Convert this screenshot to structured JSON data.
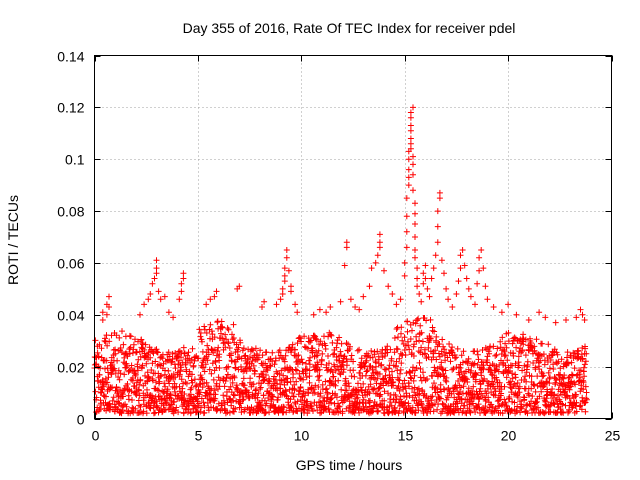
{
  "chart_data": {
    "type": "scatter",
    "title": "Day 355 of 2016, Rate Of TEC Index for receiver pdel",
    "xlabel": "GPS time / hours",
    "ylabel": "ROTI / TECUs",
    "xlim": [
      0,
      25
    ],
    "ylim": [
      0,
      0.14
    ],
    "xticks": [
      0,
      5,
      10,
      15,
      20,
      25
    ],
    "xtick_labels": [
      "0",
      "5",
      "10",
      "15",
      "20",
      "25"
    ],
    "yticks": [
      0,
      0.02,
      0.04,
      0.06,
      0.08,
      0.1,
      0.12,
      0.14
    ],
    "ytick_labels": [
      "0",
      "0.02",
      "0.04",
      "0.06",
      "0.08",
      "0.1",
      "0.12",
      "0.14"
    ],
    "grid": true,
    "marker": "+",
    "color": "#ff0000",
    "series": [
      {
        "name": "ROTI",
        "x_range": [
          0,
          23.8
        ],
        "typical_range": [
          0.005,
          0.03
        ],
        "points": [
          [
            0.4,
            0.038
          ],
          [
            0.4,
            0.041
          ],
          [
            0.6,
            0.04
          ],
          [
            0.6,
            0.044
          ],
          [
            0.7,
            0.043
          ],
          [
            0.7,
            0.047
          ],
          [
            2.2,
            0.04
          ],
          [
            2.4,
            0.044
          ],
          [
            2.6,
            0.046
          ],
          [
            2.7,
            0.048
          ],
          [
            2.8,
            0.052
          ],
          [
            2.9,
            0.054
          ],
          [
            3.0,
            0.056
          ],
          [
            3.0,
            0.058
          ],
          [
            3.0,
            0.061
          ],
          [
            3.1,
            0.049
          ],
          [
            3.2,
            0.046
          ],
          [
            3.4,
            0.047
          ],
          [
            3.6,
            0.041
          ],
          [
            3.8,
            0.039
          ],
          [
            4.1,
            0.046
          ],
          [
            4.2,
            0.049
          ],
          [
            4.2,
            0.052
          ],
          [
            4.3,
            0.054
          ],
          [
            4.3,
            0.056
          ],
          [
            5.4,
            0.044
          ],
          [
            5.6,
            0.046
          ],
          [
            5.8,
            0.047
          ],
          [
            5.9,
            0.049
          ],
          [
            6.9,
            0.05
          ],
          [
            7.0,
            0.051
          ],
          [
            8.1,
            0.043
          ],
          [
            8.2,
            0.045
          ],
          [
            8.8,
            0.044
          ],
          [
            9.0,
            0.046
          ],
          [
            9.1,
            0.048
          ],
          [
            9.1,
            0.05
          ],
          [
            9.2,
            0.053
          ],
          [
            9.2,
            0.055
          ],
          [
            9.2,
            0.058
          ],
          [
            9.3,
            0.062
          ],
          [
            9.3,
            0.065
          ],
          [
            9.4,
            0.057
          ],
          [
            9.5,
            0.051
          ],
          [
            9.5,
            0.049
          ],
          [
            9.7,
            0.044
          ],
          [
            9.8,
            0.041
          ],
          [
            10.6,
            0.04
          ],
          [
            10.9,
            0.042
          ],
          [
            11.2,
            0.041
          ],
          [
            11.4,
            0.043
          ],
          [
            11.9,
            0.045
          ],
          [
            12.1,
            0.059
          ],
          [
            12.2,
            0.066
          ],
          [
            12.2,
            0.068
          ],
          [
            12.4,
            0.046
          ],
          [
            12.6,
            0.043
          ],
          [
            12.8,
            0.042
          ],
          [
            13.0,
            0.047
          ],
          [
            13.3,
            0.051
          ],
          [
            13.4,
            0.058
          ],
          [
            13.6,
            0.06
          ],
          [
            13.7,
            0.063
          ],
          [
            13.8,
            0.066
          ],
          [
            13.8,
            0.068
          ],
          [
            13.8,
            0.071
          ],
          [
            14.0,
            0.057
          ],
          [
            14.2,
            0.051
          ],
          [
            14.4,
            0.048
          ],
          [
            14.6,
            0.044
          ],
          [
            14.8,
            0.046
          ],
          [
            15.0,
            0.055
          ],
          [
            15.0,
            0.06
          ],
          [
            15.1,
            0.066
          ],
          [
            15.1,
            0.072
          ],
          [
            15.1,
            0.078
          ],
          [
            15.1,
            0.085
          ],
          [
            15.2,
            0.09
          ],
          [
            15.2,
            0.093
          ],
          [
            15.2,
            0.096
          ],
          [
            15.2,
            0.1
          ],
          [
            15.2,
            0.103
          ],
          [
            15.3,
            0.104
          ],
          [
            15.3,
            0.106
          ],
          [
            15.3,
            0.108
          ],
          [
            15.3,
            0.111
          ],
          [
            15.3,
            0.113
          ],
          [
            15.3,
            0.116
          ],
          [
            15.3,
            0.118
          ],
          [
            15.4,
            0.12
          ],
          [
            15.4,
            0.101
          ],
          [
            15.4,
            0.098
          ],
          [
            15.4,
            0.094
          ],
          [
            15.4,
            0.088
          ],
          [
            15.5,
            0.083
          ],
          [
            15.5,
            0.079
          ],
          [
            15.5,
            0.075
          ],
          [
            15.5,
            0.07
          ],
          [
            15.5,
            0.065
          ],
          [
            15.5,
            0.062
          ],
          [
            15.6,
            0.058
          ],
          [
            15.6,
            0.054
          ],
          [
            15.6,
            0.051
          ],
          [
            15.7,
            0.048
          ],
          [
            15.8,
            0.045
          ],
          [
            15.9,
            0.052
          ],
          [
            15.9,
            0.056
          ],
          [
            16.0,
            0.059
          ],
          [
            16.0,
            0.054
          ],
          [
            16.1,
            0.05
          ],
          [
            16.2,
            0.047
          ],
          [
            16.3,
            0.054
          ],
          [
            16.4,
            0.058
          ],
          [
            16.5,
            0.063
          ],
          [
            16.6,
            0.068
          ],
          [
            16.6,
            0.074
          ],
          [
            16.6,
            0.08
          ],
          [
            16.7,
            0.085
          ],
          [
            16.7,
            0.087
          ],
          [
            16.8,
            0.061
          ],
          [
            16.9,
            0.056
          ],
          [
            17.0,
            0.05
          ],
          [
            17.1,
            0.046
          ],
          [
            17.3,
            0.043
          ],
          [
            17.5,
            0.048
          ],
          [
            17.6,
            0.053
          ],
          [
            17.7,
            0.058
          ],
          [
            17.7,
            0.063
          ],
          [
            17.8,
            0.065
          ],
          [
            17.9,
            0.059
          ],
          [
            18.0,
            0.054
          ],
          [
            18.1,
            0.05
          ],
          [
            18.2,
            0.047
          ],
          [
            18.4,
            0.044
          ],
          [
            18.5,
            0.052
          ],
          [
            18.6,
            0.057
          ],
          [
            18.6,
            0.062
          ],
          [
            18.7,
            0.065
          ],
          [
            18.8,
            0.058
          ],
          [
            18.9,
            0.051
          ],
          [
            19.0,
            0.046
          ],
          [
            19.3,
            0.043
          ],
          [
            19.7,
            0.041
          ],
          [
            20.0,
            0.044
          ],
          [
            20.4,
            0.04
          ],
          [
            21.0,
            0.038
          ],
          [
            21.5,
            0.041
          ],
          [
            21.8,
            0.039
          ],
          [
            22.3,
            0.037
          ],
          [
            22.8,
            0.038
          ],
          [
            23.3,
            0.039
          ],
          [
            23.5,
            0.042
          ],
          [
            23.6,
            0.04
          ],
          [
            23.7,
            0.038
          ]
        ]
      }
    ]
  }
}
